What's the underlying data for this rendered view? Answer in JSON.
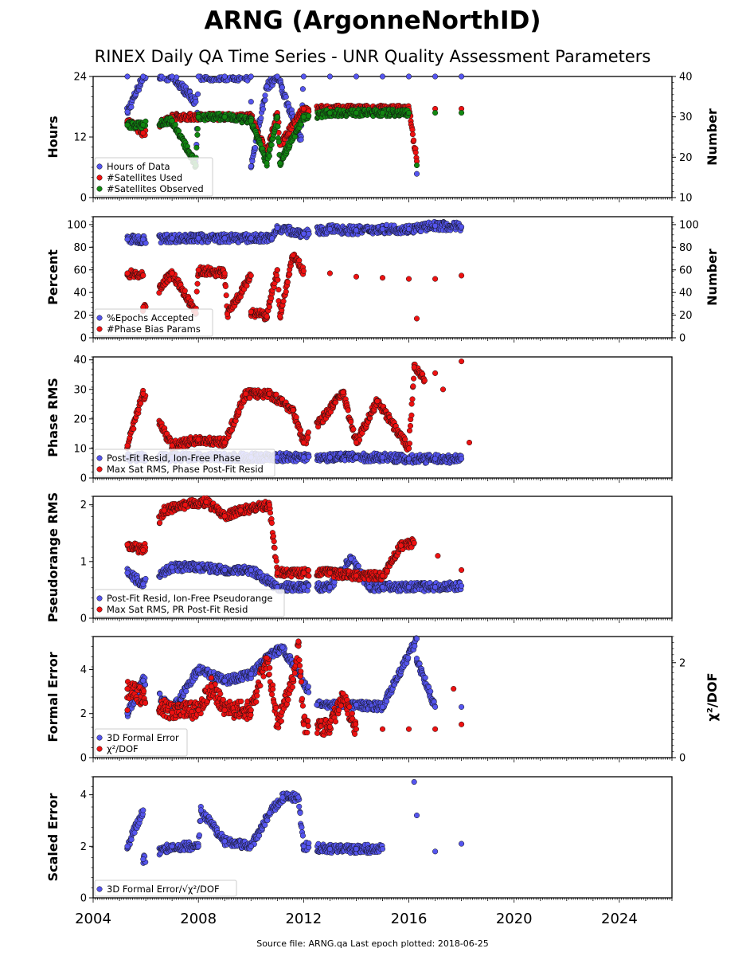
{
  "title": "ARNG (ArgonneNorthID)",
  "subtitle": "RINEX Daily QA Time Series - UNR Quality Assessment Parameters",
  "footer": "Source file: ARNG.qa Last epoch plotted: 2018-06-25",
  "colors": {
    "blue": "#5555ee",
    "red": "#ee1111",
    "green": "#118811"
  },
  "chart_data": [
    {
      "type": "scatter",
      "ylabel": "Hours",
      "y2label": "Number",
      "xlim": [
        2004,
        2026
      ],
      "ylim": [
        0,
        24
      ],
      "y2lim": [
        10,
        40
      ],
      "yticks": [
        "0",
        "12",
        "24"
      ],
      "y2ticks": [
        "10",
        "20",
        "30",
        "40"
      ],
      "x_ticks": [
        "2004",
        "2008",
        "2012",
        "2016",
        "2020",
        "2024"
      ],
      "legend": [
        "Hours of Data",
        "#Satellites Used",
        "#Satellites Observed"
      ],
      "legend_position": "lower-left",
      "series": [
        {
          "name": "Hours of Data",
          "axis": "left",
          "color": "blue",
          "points": [
            [
              2005.3,
              24
            ],
            [
              2005.9,
              24
            ],
            [
              2007.0,
              24
            ],
            [
              2008.0,
              24
            ],
            [
              2009.0,
              24
            ],
            [
              2010.0,
              24
            ],
            [
              2011.0,
              24
            ],
            [
              2012.0,
              24
            ],
            [
              2013.0,
              24
            ],
            [
              2014.0,
              24
            ],
            [
              2015.0,
              24
            ],
            [
              2016.0,
              24
            ],
            [
              2017.0,
              24
            ],
            [
              2018.0,
              24
            ],
            [
              2005.3,
              17
            ],
            [
              2007.9,
              19
            ],
            [
              2010.0,
              19
            ],
            [
              2010.6,
              22
            ],
            [
              2011.9,
              11.5
            ],
            [
              2016.3,
              4.7
            ],
            [
              2007.9,
              6.5
            ],
            [
              2010.0,
              6.2
            ]
          ]
        },
        {
          "name": "#Satellites Used",
          "axis": "right",
          "color": "red",
          "points": [
            [
              2005.3,
              29
            ],
            [
              2005.9,
              26
            ],
            [
              2007.0,
              30
            ],
            [
              2008.0,
              30
            ],
            [
              2009.0,
              30
            ],
            [
              2010.0,
              30
            ],
            [
              2011.0,
              31
            ],
            [
              2012.0,
              32
            ],
            [
              2013.0,
              32
            ],
            [
              2014.0,
              32
            ],
            [
              2015.0,
              32
            ],
            [
              2016.0,
              32
            ],
            [
              2017.0,
              32
            ],
            [
              2018.0,
              32
            ],
            [
              2010.6,
              21
            ],
            [
              2011.1,
              23
            ],
            [
              2016.3,
              19
            ]
          ]
        },
        {
          "name": "#Satellites Observed",
          "axis": "right",
          "color": "green",
          "points": [
            [
              2005.3,
              28
            ],
            [
              2005.9,
              28
            ],
            [
              2007.0,
              29
            ],
            [
              2008.0,
              30
            ],
            [
              2009.0,
              30
            ],
            [
              2010.0,
              29
            ],
            [
              2011.0,
              30
            ],
            [
              2012.0,
              30
            ],
            [
              2013.0,
              31
            ],
            [
              2014.0,
              31
            ],
            [
              2015.0,
              31
            ],
            [
              2016.0,
              31
            ],
            [
              2017.0,
              31
            ],
            [
              2018.0,
              31
            ],
            [
              2007.9,
              18
            ],
            [
              2010.6,
              18.5
            ],
            [
              2011.1,
              18.5
            ],
            [
              2016.3,
              18
            ]
          ]
        }
      ]
    },
    {
      "type": "scatter",
      "ylabel": "Percent",
      "y2label": "Number",
      "xlim": [
        2004,
        2026
      ],
      "ylim": [
        0,
        107
      ],
      "yticks": [
        "0",
        "20",
        "40",
        "60",
        "80",
        "100"
      ],
      "y2ticks": [
        "0",
        "20",
        "40",
        "60",
        "80",
        "100"
      ],
      "legend": [
        "%Epochs Accepted",
        "#Phase Bias Params"
      ],
      "legend_position": "lower-left",
      "series": [
        {
          "name": "%Epochs Accepted",
          "axis": "left",
          "color": "blue",
          "points": [
            [
              2005.3,
              87
            ],
            [
              2005.9,
              87
            ],
            [
              2007.0,
              88
            ],
            [
              2008.0,
              88
            ],
            [
              2009.0,
              88
            ],
            [
              2010.0,
              88
            ],
            [
              2010.8,
              88
            ],
            [
              2011.0,
              97
            ],
            [
              2012.0,
              92
            ],
            [
              2013.0,
              96
            ],
            [
              2014.0,
              95
            ],
            [
              2015.0,
              96
            ],
            [
              2016.0,
              96
            ],
            [
              2017.0,
              99
            ],
            [
              2018.0,
              98
            ]
          ]
        },
        {
          "name": "#Phase Bias Params",
          "axis": "right",
          "color": "red",
          "points": [
            [
              2005.3,
              57
            ],
            [
              2005.9,
              55
            ],
            [
              2007.0,
              57
            ],
            [
              2008.0,
              60
            ],
            [
              2009.0,
              57
            ],
            [
              2010.0,
              55
            ],
            [
              2011.0,
              60
            ],
            [
              2012.0,
              59
            ],
            [
              2013.0,
              57
            ],
            [
              2014.0,
              54
            ],
            [
              2015.0,
              53
            ],
            [
              2016.0,
              52
            ],
            [
              2017.0,
              52
            ],
            [
              2018.0,
              55
            ],
            [
              2005.9,
              27
            ],
            [
              2007.9,
              22
            ],
            [
              2009.1,
              21
            ],
            [
              2010.0,
              23
            ],
            [
              2010.6,
              19
            ],
            [
              2011.1,
              19
            ],
            [
              2016.3,
              17
            ],
            [
              2011.6,
              73
            ]
          ]
        }
      ]
    },
    {
      "type": "scatter",
      "ylabel": "Phase RMS",
      "xlim": [
        2004,
        2026
      ],
      "ylim": [
        0,
        41
      ],
      "yticks": [
        "0",
        "10",
        "20",
        "30",
        "40"
      ],
      "legend": [
        "Post-Fit Resid, Ion-Free Phase",
        "Max Sat RMS, Phase Post-Fit Resid"
      ],
      "legend_position": "lower-left",
      "series": [
        {
          "name": "Post-Fit Resid, Ion-Free Phase",
          "axis": "left",
          "color": "blue",
          "points": [
            [
              2005.3,
              7
            ],
            [
              2007.0,
              7
            ],
            [
              2008.0,
              7
            ],
            [
              2009.0,
              7
            ],
            [
              2010.0,
              7
            ],
            [
              2011.0,
              7
            ],
            [
              2012.0,
              7
            ],
            [
              2013.0,
              7
            ],
            [
              2014.0,
              7
            ],
            [
              2015.0,
              7
            ],
            [
              2016.0,
              6.5
            ],
            [
              2017.0,
              6.5
            ],
            [
              2018.0,
              6.5
            ]
          ]
        },
        {
          "name": "Max Sat RMS, Phase Post-Fit Resid",
          "axis": "left",
          "color": "red",
          "points": [
            [
              2005.3,
              11
            ],
            [
              2005.9,
              28.5
            ],
            [
              2007.0,
              11
            ],
            [
              2008.0,
              13
            ],
            [
              2009.0,
              12
            ],
            [
              2009.8,
              28.5
            ],
            [
              2010.7,
              28.5
            ],
            [
              2011.6,
              23
            ],
            [
              2013.5,
              29
            ],
            [
              2014.8,
              26
            ],
            [
              2016.2,
              37.5
            ],
            [
              2016.6,
              33
            ],
            [
              2017.0,
              35.5
            ],
            [
              2017.3,
              30
            ],
            [
              2018.0,
              39.5
            ],
            [
              2012.0,
              12
            ],
            [
              2014.0,
              12
            ],
            [
              2016.0,
              10
            ],
            [
              2018.3,
              12
            ]
          ]
        }
      ]
    },
    {
      "type": "scatter",
      "ylabel": "Pseudorange RMS",
      "xlim": [
        2004,
        2026
      ],
      "ylim": [
        0,
        2.15
      ],
      "yticks": [
        "0",
        "1",
        "2"
      ],
      "legend": [
        "Post-Fit Resid, Ion-Free Pseudorange",
        "Max Sat RMS, PR Post-Fit Resid"
      ],
      "legend_position": "lower-left",
      "series": [
        {
          "name": "Post-Fit Resid, Ion-Free Pseudorange",
          "axis": "left",
          "color": "blue",
          "points": [
            [
              2005.3,
              0.8
            ],
            [
              2005.9,
              0.6
            ],
            [
              2007.0,
              0.9
            ],
            [
              2008.0,
              0.9
            ],
            [
              2009.0,
              0.85
            ],
            [
              2010.0,
              0.85
            ],
            [
              2011.0,
              0.55
            ],
            [
              2012.0,
              0.55
            ],
            [
              2013.0,
              0.55
            ],
            [
              2013.8,
              1.05
            ],
            [
              2014.5,
              0.55
            ],
            [
              2015.0,
              0.55
            ],
            [
              2016.0,
              0.55
            ],
            [
              2017.0,
              0.55
            ],
            [
              2018.0,
              0.57
            ]
          ]
        },
        {
          "name": "Max Sat RMS, PR Post-Fit Resid",
          "axis": "left",
          "color": "red",
          "points": [
            [
              2005.3,
              1.3
            ],
            [
              2005.9,
              1.2
            ],
            [
              2006.7,
              1.9
            ],
            [
              2007.5,
              2.0
            ],
            [
              2008.3,
              2.05
            ],
            [
              2009.0,
              1.8
            ],
            [
              2009.6,
              1.9
            ],
            [
              2010.7,
              2.0
            ],
            [
              2011.0,
              0.8
            ],
            [
              2012.0,
              0.8
            ],
            [
              2013.0,
              0.8
            ],
            [
              2014.0,
              0.75
            ],
            [
              2015.0,
              0.75
            ],
            [
              2015.7,
              1.28
            ],
            [
              2016.2,
              1.33
            ],
            [
              2017.1,
              1.1
            ],
            [
              2018.0,
              0.85
            ]
          ]
        }
      ]
    },
    {
      "type": "scatter",
      "ylabel": "Formal Error",
      "y2label": "χ²/DOF",
      "xlim": [
        2004,
        2026
      ],
      "ylim": [
        0,
        5.5
      ],
      "y2lim": [
        0,
        2.55
      ],
      "yticks": [
        "0",
        "2",
        "4"
      ],
      "y2ticks": [
        "0",
        "2"
      ],
      "legend": [
        "3D Formal Error",
        "χ²/DOF"
      ],
      "legend_position": "lower-left",
      "series": [
        {
          "name": "3D Formal Error",
          "axis": "left",
          "color": "blue",
          "points": [
            [
              2005.3,
              2.0
            ],
            [
              2005.9,
              3.5
            ],
            [
              2007.0,
              2.2
            ],
            [
              2008.0,
              4.0
            ],
            [
              2009.0,
              3.5
            ],
            [
              2010.0,
              3.8
            ],
            [
              2010.7,
              4.6
            ],
            [
              2011.2,
              5.0
            ],
            [
              2012.0,
              3.4
            ],
            [
              2012.5,
              2.4
            ],
            [
              2014.0,
              2.4
            ],
            [
              2015.0,
              2.3
            ],
            [
              2016.3,
              5.4
            ],
            [
              2016.3,
              4.5
            ],
            [
              2017.0,
              2.3
            ],
            [
              2018.0,
              2.3
            ]
          ]
        },
        {
          "name": "χ²/DOF",
          "axis": "right",
          "color": "red",
          "points": [
            [
              2005.3,
              1.0
            ],
            [
              2007.0,
              0.95
            ],
            [
              2008.0,
              1.0
            ],
            [
              2009.0,
              1.0
            ],
            [
              2010.0,
              1.0
            ],
            [
              2010.6,
              2.1
            ],
            [
              2011.8,
              2.45
            ],
            [
              2011.0,
              0.7
            ],
            [
              2012.0,
              0.7
            ],
            [
              2013.0,
              0.65
            ],
            [
              2014.0,
              0.6
            ],
            [
              2015.0,
              0.6
            ],
            [
              2016.0,
              0.6
            ],
            [
              2017.0,
              0.6
            ],
            [
              2018.0,
              0.7
            ],
            [
              2005.3,
              1.45
            ],
            [
              2008.5,
              1.5
            ],
            [
              2011.6,
              1.65
            ],
            [
              2013.5,
              1.35
            ],
            [
              2017.7,
              1.45
            ]
          ]
        }
      ]
    },
    {
      "type": "scatter",
      "ylabel": "Scaled Error",
      "xlim": [
        2004,
        2026
      ],
      "ylim": [
        0,
        4.7
      ],
      "yticks": [
        "0",
        "2",
        "4"
      ],
      "xticks": [
        "2004",
        "2008",
        "2012",
        "2016",
        "2020",
        "2024"
      ],
      "legend": [
        "3D Formal Error/√χ²/DOF"
      ],
      "legend_position": "lower-left",
      "series": [
        {
          "name": "3D Formal Error/√χ²/DOF",
          "axis": "left",
          "color": "blue",
          "points": [
            [
              2005.3,
              2.0
            ],
            [
              2005.9,
              3.4
            ],
            [
              2005.9,
              1.5
            ],
            [
              2007.0,
              2.0
            ],
            [
              2008.0,
              2.0
            ],
            [
              2008.1,
              3.4
            ],
            [
              2009.0,
              2.2
            ],
            [
              2010.0,
              2.0
            ],
            [
              2010.7,
              3.3
            ],
            [
              2011.2,
              3.9
            ],
            [
              2011.8,
              3.9
            ],
            [
              2012.0,
              2.0
            ],
            [
              2013.0,
              1.9
            ],
            [
              2014.0,
              1.9
            ],
            [
              2015.0,
              1.9
            ],
            [
              2016.2,
              4.5
            ],
            [
              2016.3,
              3.2
            ],
            [
              2017.0,
              1.8
            ],
            [
              2018.0,
              2.1
            ]
          ]
        }
      ]
    }
  ]
}
